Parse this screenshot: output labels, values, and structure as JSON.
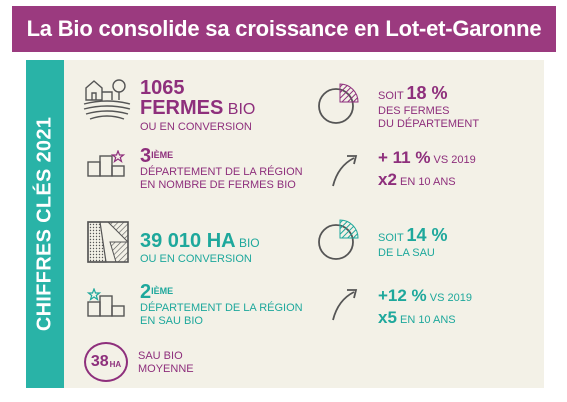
{
  "title": "La Bio consolide sa croissance en Lot-et-Garonne",
  "side_label": "CHIFFRES CLÉS 2021",
  "colors": {
    "title_bg": "#9b3a7f",
    "band": "#29b3a7",
    "panel": "#f3f1e7",
    "purple": "#8e2f7c",
    "teal": "#1ea89c",
    "grey": "#555555"
  },
  "farms": {
    "icon": "farm-icon",
    "value": "1065",
    "line1_bold": "FERMES",
    "line1_rest": " BIO",
    "line2": "OU EN CONVERSION"
  },
  "farms_share": {
    "icon": "pie-chart-icon",
    "prefix": "SOIT ",
    "value": "18 %",
    "line2": "DES FERMES",
    "line3": "DU DÉPARTEMENT"
  },
  "farms_rank": {
    "icon": "podium-icon",
    "value": "3",
    "suffix": "IÈME",
    "line1": "DÉPARTEMENT DE LA RÉGION",
    "line2": "EN NOMBRE DE FERMES BIO"
  },
  "farms_growth": {
    "icon": "growth-arrow-icon",
    "value": "+ 11 %",
    "compare": " VS 2019",
    "multiplier": "x2",
    "period": " EN 10 ANS"
  },
  "area": {
    "icon": "field-icon",
    "value": "39 010 HA",
    "line1_rest": " BIO",
    "line2": "OU EN CONVERSION"
  },
  "area_share": {
    "icon": "pie-chart-icon",
    "prefix": "SOIT ",
    "value": "14 %",
    "line2": "DE LA SAU"
  },
  "area_rank": {
    "icon": "podium-icon",
    "value": "2",
    "suffix": "IÈME",
    "line1": "DÉPARTEMENT DE LA RÉGION",
    "line2": "EN SAU BIO"
  },
  "area_growth": {
    "icon": "growth-arrow-icon",
    "value": "+12 %",
    "compare": " VS 2019",
    "multiplier": "x5",
    "period": " EN 10 ANS"
  },
  "average": {
    "badge_value": "38",
    "badge_unit": "HA",
    "line1": "SAU BIO",
    "line2": "MOYENNE"
  }
}
